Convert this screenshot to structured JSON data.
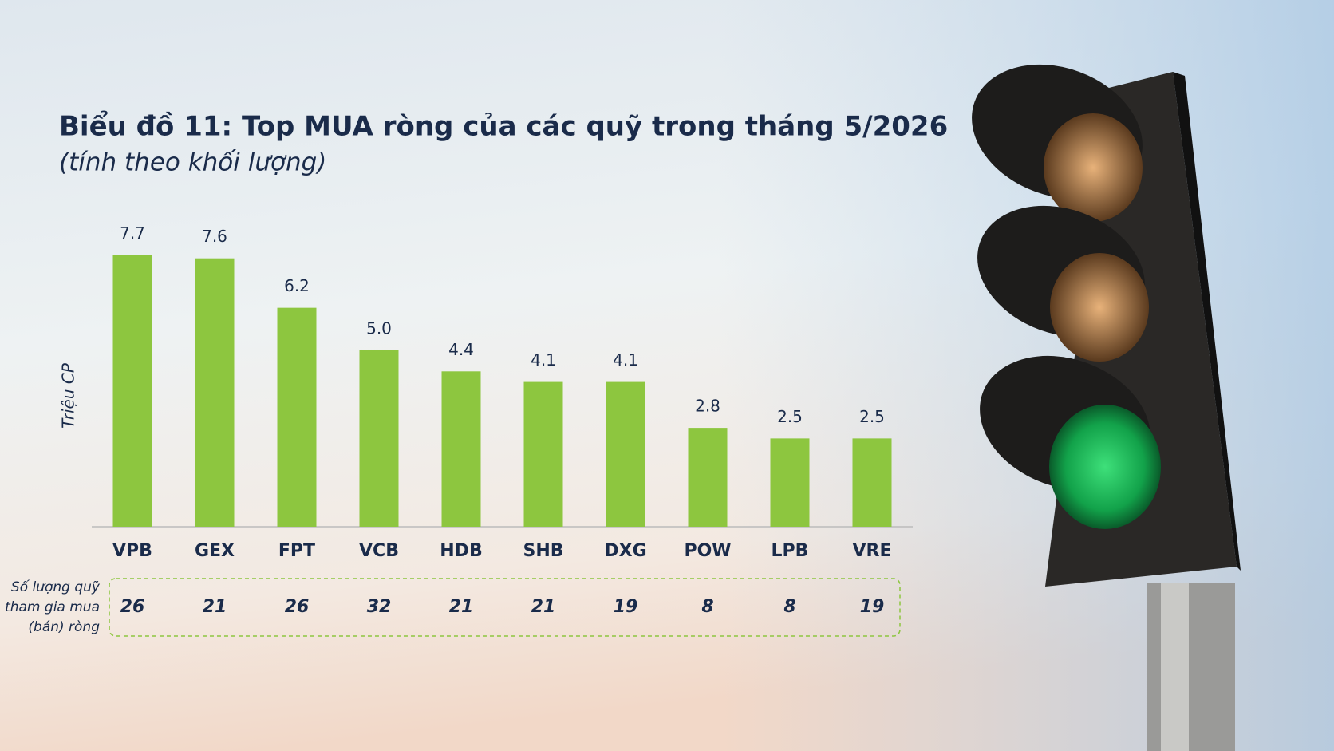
{
  "chart_data": {
    "type": "bar",
    "title": "Biểu đồ 11: Top MUA ròng của các quỹ trong tháng 5/2026",
    "subtitle": "(tính theo khối lượng)",
    "y_label": "Triệu CP",
    "categories": [
      "VPB",
      "GEX",
      "FPT",
      "VCB",
      "HDB",
      "SHB",
      "DXG",
      "POW",
      "LPB",
      "VRE"
    ],
    "values": [
      7.7,
      7.6,
      6.2,
      5.0,
      4.4,
      4.1,
      4.1,
      2.8,
      2.5,
      2.5
    ],
    "value_labels": [
      "7.7",
      "7.6",
      "6.2",
      "5.0",
      "4.4",
      "4.1",
      "4.1",
      "2.8",
      "2.5",
      "2.5"
    ],
    "color": "#8dc63f",
    "ylim": [
      0,
      8
    ],
    "fund_counts": {
      "label": [
        "Số lượng quỹ",
        "tham gia mua",
        "(bán) ròng"
      ],
      "values": [
        26,
        21,
        26,
        32,
        21,
        21,
        19,
        8,
        8,
        19
      ]
    }
  }
}
